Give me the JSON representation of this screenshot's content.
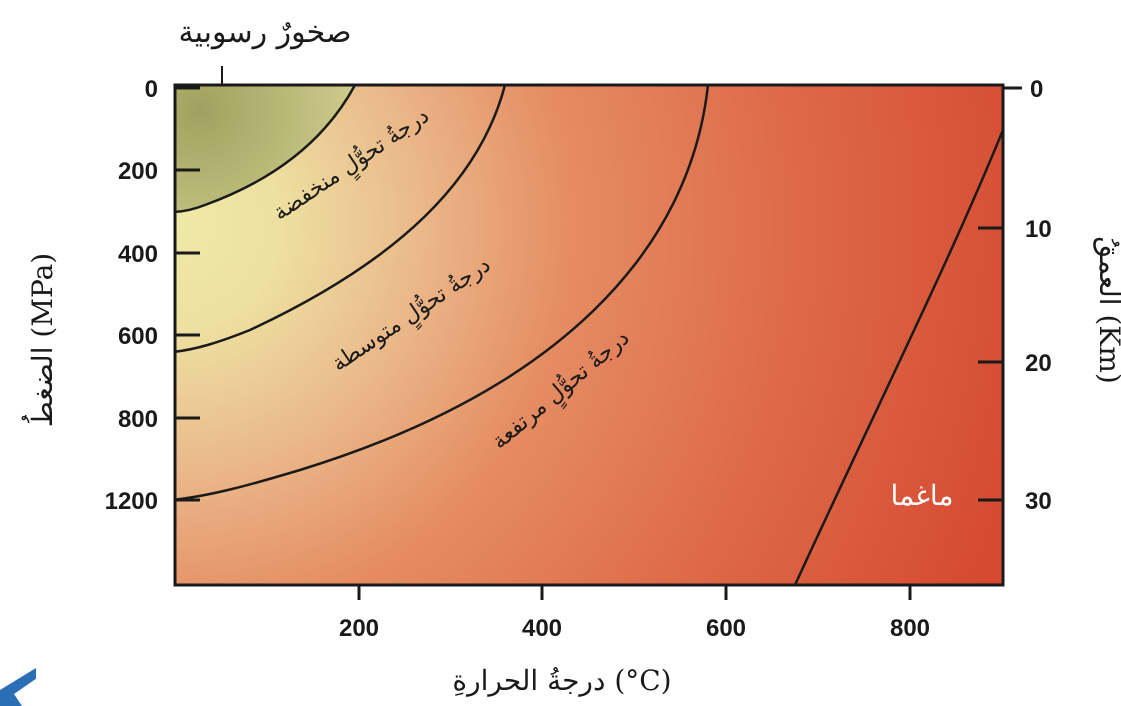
{
  "chart_data": {
    "type": "diagram",
    "title": "",
    "top_label": "صخورٌ رسوبية",
    "x_axis": {
      "label": "درجةُ الحرارةِ (°C)",
      "ticks": [
        "200",
        "400",
        "600",
        "800"
      ],
      "range": [
        0,
        900
      ]
    },
    "y_left_axis": {
      "label": "الضغطُ (MPa)",
      "ticks": [
        "0",
        "200",
        "400",
        "600",
        "800",
        "1200"
      ]
    },
    "y_right_axis": {
      "label": "العمقُ (Km)",
      "ticks": [
        "0",
        "10",
        "20",
        "30"
      ]
    },
    "regions": [
      {
        "name": "sedimentary-rocks",
        "label": "صخورٌ رسوبية",
        "color": "#b8b878"
      },
      {
        "name": "low-grade",
        "label": "درجةُ تحوُّلٍ منخفضة"
      },
      {
        "name": "medium-grade",
        "label": "درجةُ تحوُّلٍ متوسطة"
      },
      {
        "name": "high-grade",
        "label": "درجةُ تحوُّلٍ مرتفعة"
      },
      {
        "name": "magma",
        "label": "ماغما",
        "color": "#d4432d"
      }
    ],
    "colors": {
      "cool": "#ece6a0",
      "mid": "#e8956a",
      "hot": "#d9492f",
      "sediment": "#aeb06e"
    }
  }
}
